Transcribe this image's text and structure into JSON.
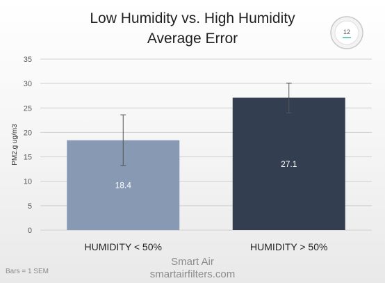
{
  "title_lines": [
    "Low Humidity vs. High Humidity",
    "Average Error"
  ],
  "device_icon": {
    "name": "air-quality-monitor-icon",
    "reading": "12"
  },
  "footnote": "Bars = 1 SEM",
  "brand": {
    "name": "Smart Air",
    "url": "smartairfilters.com"
  },
  "colors": {
    "bar_low": "#8799b3",
    "bar_high": "#343e51",
    "grid": "#d0d0d0",
    "axis_text": "#555555",
    "value_label": "#ffffff"
  },
  "chart_data": {
    "type": "bar",
    "title": "Low Humidity vs. High Humidity Average Error",
    "xlabel": "",
    "ylabel": "PM2.g ug/m3",
    "ylim": [
      0,
      35
    ],
    "yticks": [
      0,
      5,
      10,
      15,
      20,
      25,
      30,
      35
    ],
    "grid": true,
    "categories": [
      "HUMIDITY < 50%",
      "HUMIDITY > 50%"
    ],
    "values": [
      18.4,
      27.1
    ],
    "data_labels": [
      "18.4",
      "27.1"
    ],
    "error_low": [
      13.2,
      24.0
    ],
    "error_high": [
      23.6,
      30.1
    ]
  }
}
